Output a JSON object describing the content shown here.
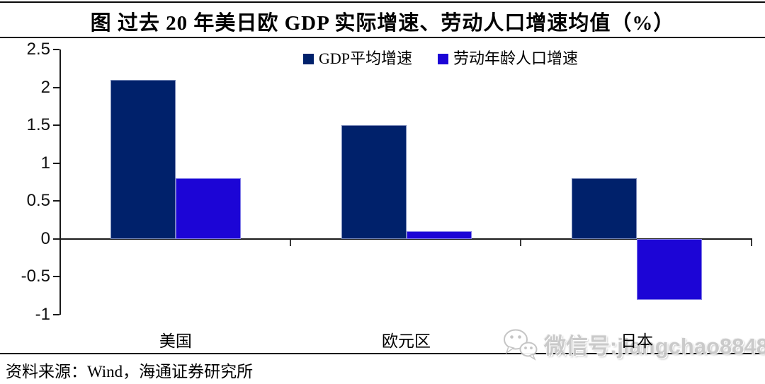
{
  "title": "图 过去 20 年美日欧 GDP 实际增速、劳动人口增速均值（%）",
  "source": "资料来源：Wind，海通证券研究所",
  "watermark": {
    "icon": "wechat-icon",
    "text": "微信号:jiangchao8848",
    "color": "#c8c8c8"
  },
  "colors": {
    "gdp_series": "#00216b",
    "labor_series": "#1c05d6",
    "axis": "#1a1a1a",
    "border_lines": "#0a0a0a",
    "background": "#ffffff"
  },
  "chart_data": {
    "type": "bar",
    "title": "图 过去 20 年美日欧 GDP 实际增速、劳动人口增速均值（%）",
    "categories": [
      "美国",
      "欧元区",
      "日本"
    ],
    "series": [
      {
        "name": "GDP平均增速",
        "color": "#00216b",
        "values": [
          2.1,
          1.5,
          0.8
        ]
      },
      {
        "name": "劳动年龄人口增速",
        "color": "#1c05d6",
        "values": [
          0.8,
          0.1,
          -0.8
        ]
      }
    ],
    "xlabel": "",
    "ylabel": "",
    "ylim": [
      -1,
      2.5
    ],
    "yticks": [
      "2.5",
      "2",
      "1.5",
      "1",
      "0.5",
      "0",
      "-0.5",
      "-1"
    ],
    "grid": false,
    "legend_position": "top-center"
  }
}
